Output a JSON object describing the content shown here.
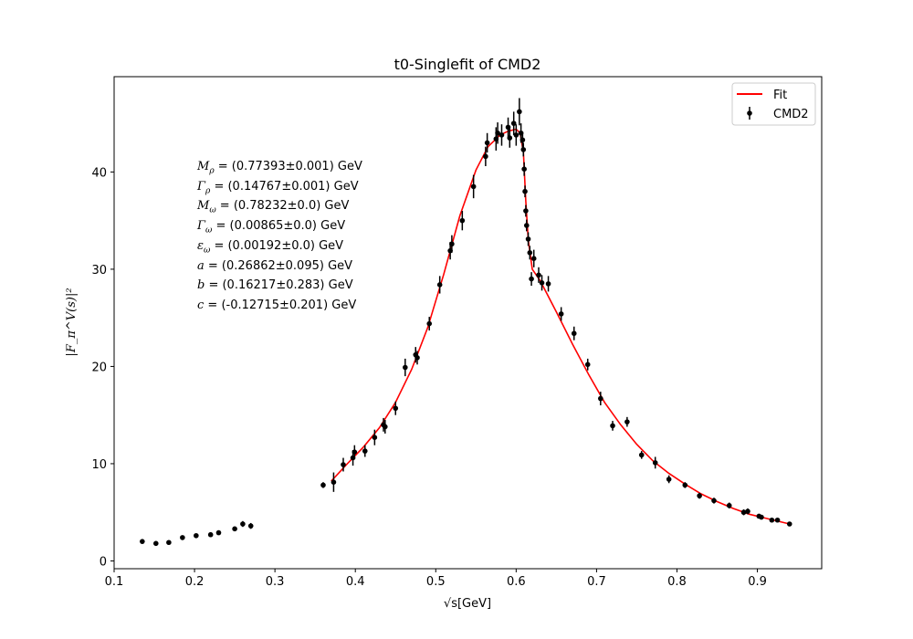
{
  "chart_data": {
    "type": "scatter",
    "title": "t0-Singlefit of CMD2",
    "xlabel": "√s[GeV]",
    "ylabel": "|F_π^V(s)|²",
    "xlim": [
      0.1,
      0.98
    ],
    "ylim": [
      -0.8,
      49.8
    ],
    "xticks": [
      0.1,
      0.2,
      0.3,
      0.4,
      0.5,
      0.6,
      0.7,
      0.8,
      0.9
    ],
    "yticks": [
      0,
      10,
      20,
      30,
      40
    ],
    "grid": false,
    "legend_position": "top-right",
    "series": [
      {
        "name": "Fit",
        "kind": "line",
        "color": "#ff0000",
        "params": {
          "M_rho": 0.77393,
          "G_rho": 0.14767,
          "M_omega": 0.78232,
          "G_omega": 0.00865,
          "eps_omega": 0.00192,
          "a": 0.26862,
          "b": 0.16217,
          "c": -0.12715
        },
        "x": [
          0.37,
          0.39,
          0.41,
          0.43,
          0.45,
          0.47,
          0.49,
          0.51,
          0.53,
          0.55,
          0.565,
          0.58,
          0.59,
          0.6,
          0.605,
          0.609,
          0.612,
          0.615,
          0.62,
          0.63,
          0.65,
          0.67,
          0.69,
          0.71,
          0.73,
          0.75,
          0.77,
          0.79,
          0.81,
          0.83,
          0.85,
          0.87,
          0.89,
          0.91,
          0.94
        ],
        "y": [
          8.2,
          10.0,
          11.7,
          13.7,
          16.3,
          19.7,
          24.0,
          29.5,
          35.5,
          40.2,
          42.6,
          43.8,
          44.2,
          44.4,
          44.0,
          42.0,
          37.0,
          33.0,
          30.0,
          28.8,
          25.6,
          22.3,
          19.2,
          16.3,
          14.0,
          12.0,
          10.3,
          9.0,
          7.9,
          6.9,
          6.1,
          5.4,
          4.8,
          4.4,
          3.8
        ]
      },
      {
        "name": "CMD2",
        "kind": "errorbar",
        "color": "#000000",
        "x": [
          0.135,
          0.152,
          0.168,
          0.185,
          0.202,
          0.22,
          0.23,
          0.25,
          0.26,
          0.27,
          0.36,
          0.373,
          0.385,
          0.397,
          0.399,
          0.412,
          0.424,
          0.435,
          0.437,
          0.45,
          0.462,
          0.475,
          0.477,
          0.492,
          0.505,
          0.518,
          0.52,
          0.533,
          0.547,
          0.562,
          0.564,
          0.575,
          0.577,
          0.582,
          0.59,
          0.592,
          0.597,
          0.6,
          0.604,
          0.606,
          0.608,
          0.609,
          0.61,
          0.611,
          0.612,
          0.613,
          0.615,
          0.617,
          0.619,
          0.622,
          0.628,
          0.632,
          0.64,
          0.656,
          0.672,
          0.689,
          0.705,
          0.72,
          0.738,
          0.756,
          0.773,
          0.79,
          0.81,
          0.828,
          0.846,
          0.865,
          0.883,
          0.888,
          0.902,
          0.905,
          0.918,
          0.925,
          0.94
        ],
        "y": [
          2.0,
          1.8,
          1.9,
          2.4,
          2.6,
          2.7,
          2.9,
          3.3,
          3.8,
          3.6,
          7.8,
          8.1,
          9.9,
          10.6,
          11.2,
          11.3,
          12.7,
          14.0,
          13.8,
          15.7,
          19.9,
          21.2,
          20.9,
          24.4,
          28.4,
          31.9,
          32.6,
          35.0,
          38.5,
          41.6,
          43.0,
          43.4,
          44.0,
          43.8,
          44.6,
          43.5,
          45.0,
          43.8,
          46.2,
          44.0,
          43.3,
          42.3,
          40.3,
          38.0,
          36.0,
          34.5,
          33.1,
          31.7,
          29.0,
          31.1,
          29.4,
          28.6,
          28.5,
          25.4,
          23.4,
          20.2,
          16.7,
          13.9,
          14.3,
          10.9,
          10.1,
          8.4,
          7.8,
          6.7,
          6.2,
          5.7,
          5.0,
          5.1,
          4.6,
          4.5,
          4.2,
          4.2,
          3.8
        ],
        "yerr": [
          0.2,
          0.2,
          0.2,
          0.2,
          0.2,
          0.2,
          0.2,
          0.2,
          0.3,
          0.3,
          0.3,
          1.0,
          0.7,
          0.8,
          0.7,
          0.6,
          0.8,
          0.7,
          0.7,
          0.7,
          0.9,
          0.8,
          0.7,
          0.7,
          0.9,
          0.9,
          0.9,
          1.0,
          1.2,
          1.0,
          1.0,
          1.2,
          1.1,
          1.1,
          1.0,
          1.0,
          1.2,
          1.1,
          1.4,
          1.0,
          0.8,
          0.7,
          0.7,
          0.6,
          0.6,
          0.6,
          0.7,
          0.7,
          0.7,
          0.9,
          0.8,
          0.8,
          0.8,
          0.7,
          0.7,
          0.6,
          0.7,
          0.5,
          0.5,
          0.4,
          0.6,
          0.4,
          0.3,
          0.3,
          0.3,
          0.3,
          0.3,
          0.3,
          0.2,
          0.2,
          0.2,
          0.2,
          0.2
        ]
      }
    ],
    "annotations": [
      {
        "symbol": "M",
        "sub": "ρ",
        "value": "(0.77393±0.001) GeV"
      },
      {
        "symbol": "Γ",
        "sub": "ρ",
        "value": "(0.14767±0.001) GeV"
      },
      {
        "symbol": "M",
        "sub": "ω",
        "value": "(0.78232±0.0) GeV"
      },
      {
        "symbol": "Γ",
        "sub": "ω",
        "value": "(0.00865±0.0) GeV"
      },
      {
        "symbol": "ε",
        "sub": "ω",
        "value": "(0.00192±0.0) GeV"
      },
      {
        "symbol": "a",
        "sub": "",
        "value": "(0.26862±0.095) GeV"
      },
      {
        "symbol": "b",
        "sub": "",
        "value": "(0.16217±0.283) GeV"
      },
      {
        "symbol": "c",
        "sub": "",
        "value": "(-0.12715±0.201) GeV"
      }
    ]
  }
}
